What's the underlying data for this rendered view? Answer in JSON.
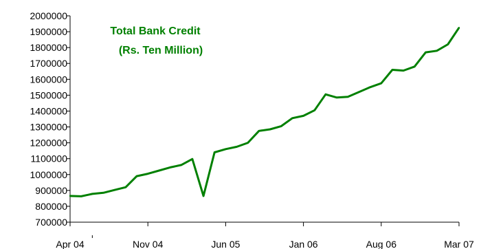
{
  "chart_data": {
    "type": "line",
    "title_lines": [
      "Total Bank Credit",
      "(Rs. Ten Million)"
    ],
    "xlabel": "",
    "ylabel": "",
    "ylim": [
      700000,
      2000000
    ],
    "y_ticks": [
      700000,
      800000,
      900000,
      1000000,
      1100000,
      1200000,
      1300000,
      1400000,
      1500000,
      1600000,
      1700000,
      1800000,
      1900000,
      2000000
    ],
    "x_ticks": [
      {
        "index": 0,
        "label": "Apr 04"
      },
      {
        "index": 7,
        "label": "Nov 04"
      },
      {
        "index": 14,
        "label": "Jun 05"
      },
      {
        "index": 21,
        "label": "Jan 06"
      },
      {
        "index": 28,
        "label": "Aug 06"
      },
      {
        "index": 35,
        "label": "Mar 07"
      }
    ],
    "grid": false,
    "colors": {
      "line": "#008000",
      "title": "#008000",
      "axis": "#000000"
    },
    "series": [
      {
        "values": [
          865000,
          863000,
          878000,
          885000,
          903000,
          920000,
          990000,
          1005000,
          1025000,
          1045000,
          1060000,
          1098000,
          865000,
          1140000,
          1160000,
          1175000,
          1200000,
          1275000,
          1285000,
          1305000,
          1355000,
          1370000,
          1405000,
          1505000,
          1485000,
          1490000,
          1520000,
          1550000,
          1575000,
          1660000,
          1655000,
          1680000,
          1770000,
          1780000,
          1820000,
          1925000
        ]
      }
    ]
  }
}
